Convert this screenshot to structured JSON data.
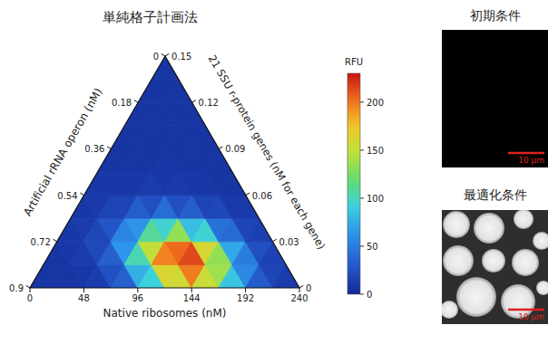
{
  "chart_data": {
    "type": "ternary",
    "title": "単純格子計画法",
    "bottom_axis": {
      "label": "Native ribosomes (nM)",
      "lim": [
        0,
        240
      ],
      "ticks": [
        0,
        48,
        96,
        144,
        192,
        240
      ]
    },
    "left_axis": {
      "label": "Artificial rRNA operon (nM)",
      "lim": [
        0,
        0.9
      ],
      "ticks": [
        0,
        0.18,
        0.36,
        0.54,
        0.72,
        0.9
      ]
    },
    "right_axis": {
      "label": "21 SSU r-protein genes (nM for each gene)",
      "lim": [
        0,
        0.15
      ],
      "ticks": [
        0,
        0.03,
        0.06,
        0.09,
        0.12,
        0.15
      ]
    },
    "cells": [
      [
        8,
        8,
        8,
        10,
        13,
        25,
        34,
        77,
        92,
        162,
        156,
        198,
        153,
        138,
        86,
        57,
        31,
        18,
        12
      ],
      [
        8,
        9,
        12,
        20,
        34,
        64,
        103,
        149,
        196,
        204,
        214,
        159,
        134,
        73,
        50,
        23,
        16
      ],
      [
        10,
        12,
        19,
        28,
        54,
        63,
        109,
        95,
        134,
        83,
        94,
        44,
        40,
        18,
        15
      ],
      [
        10,
        11,
        17,
        17,
        32,
        24,
        41,
        24,
        33,
        17,
        19,
        11,
        11
      ],
      [
        9,
        9,
        10,
        9,
        12,
        9,
        11,
        9,
        10,
        8,
        8
      ],
      [
        8,
        8,
        8,
        8,
        9,
        8,
        8,
        8,
        8
      ],
      [
        8,
        8,
        8,
        8,
        8,
        8,
        8
      ],
      [
        8,
        8,
        8,
        8,
        8
      ],
      [
        8,
        8,
        8
      ],
      [
        8
      ]
    ],
    "colorbar": {
      "label": "RFU",
      "lim": [
        0,
        230
      ],
      "ticks": [
        0,
        50,
        100,
        150,
        200
      ]
    }
  },
  "panels": [
    {
      "title": "初期条件",
      "scale_bar": "10 μm"
    },
    {
      "title": "最適化条件",
      "scale_bar": "10 μm"
    }
  ]
}
